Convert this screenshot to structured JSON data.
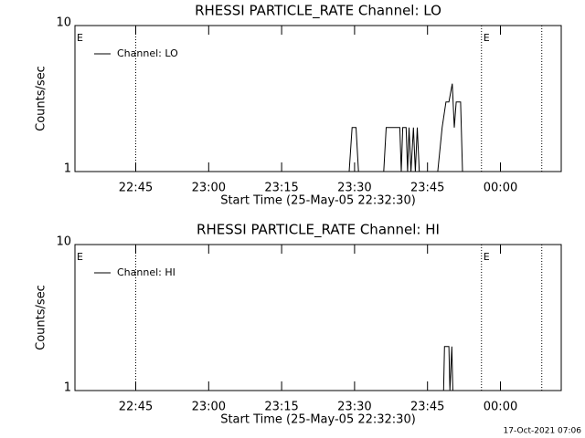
{
  "footer": "17-Oct-2021 07:06",
  "chart_data": [
    {
      "type": "line",
      "title": "RHESSI PARTICLE_RATE Channel: LO",
      "x_label": "Start Time (25-May-05 22:32:30)",
      "y_label": "Counts/sec",
      "log_y": true,
      "xlim": [
        0,
        100
      ],
      "ylim": [
        1,
        10
      ],
      "xticks": [
        {
          "value": 12.5,
          "label": "22:45"
        },
        {
          "value": 27.5,
          "label": "23:00"
        },
        {
          "value": 42.5,
          "label": "23:15"
        },
        {
          "value": 57.5,
          "label": "23:30"
        },
        {
          "value": 72.5,
          "label": "23:45"
        },
        {
          "value": 87.5,
          "label": "00:00"
        }
      ],
      "yticks": [
        1,
        10
      ],
      "vlines": [
        12.5,
        83.6,
        96
      ],
      "annotations": [
        {
          "text": "E",
          "x": 0
        },
        {
          "text": "E",
          "x": 83.6
        }
      ],
      "legend": "upper left",
      "series": [
        {
          "name": "Channel: LO",
          "color": "#000000",
          "x": [
            0,
            56.4,
            57.0,
            57.8,
            58.3,
            63.5,
            64.0,
            66.8,
            67.1,
            67.4,
            68.1,
            68.4,
            68.7,
            69.1,
            69.6,
            70.0,
            70.4,
            70.8,
            71.2,
            74.6,
            75.5,
            76.3,
            76.9,
            77.6,
            78.0,
            78.4,
            79.3,
            79.7,
            100
          ],
          "values": [
            1,
            1,
            2,
            2,
            1,
            1,
            2,
            2,
            1,
            2,
            2,
            1,
            2,
            1,
            2,
            1,
            2,
            1,
            1,
            1,
            2,
            3,
            3,
            4,
            2,
            3,
            3,
            1,
            1
          ]
        }
      ]
    },
    {
      "type": "line",
      "title": "RHESSI PARTICLE_RATE Channel: HI",
      "x_label": "Start Time (25-May-05 22:32:30)",
      "y_label": "Counts/sec",
      "log_y": true,
      "xlim": [
        0,
        100
      ],
      "ylim": [
        1,
        10
      ],
      "xticks": [
        {
          "value": 12.5,
          "label": "22:45"
        },
        {
          "value": 27.5,
          "label": "23:00"
        },
        {
          "value": 42.5,
          "label": "23:15"
        },
        {
          "value": 57.5,
          "label": "23:30"
        },
        {
          "value": 72.5,
          "label": "23:45"
        },
        {
          "value": 87.5,
          "label": "00:00"
        }
      ],
      "yticks": [
        1,
        10
      ],
      "vlines": [
        12.5,
        83.6,
        96
      ],
      "annotations": [
        {
          "text": "E",
          "x": 0
        },
        {
          "text": "E",
          "x": 83.6
        }
      ],
      "legend": "upper left",
      "series": [
        {
          "name": "Channel: HI",
          "color": "#000000",
          "x": [
            0,
            75.8,
            76.0,
            76.9,
            77.1,
            77.5,
            77.7,
            100
          ],
          "values": [
            1,
            1,
            2,
            2,
            1,
            2,
            1,
            1
          ]
        }
      ]
    }
  ]
}
